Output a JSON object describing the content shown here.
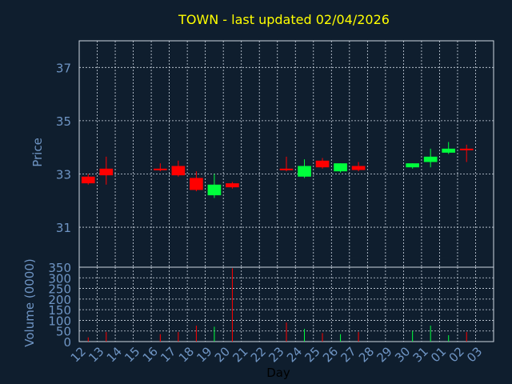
{
  "chart_data": {
    "type": "candlestick",
    "title": "TOWN - last updated 02/04/2026",
    "xlabel": "Day",
    "price_panel": {
      "ylabel": "Price",
      "ylim": [
        29.5,
        38.0
      ],
      "yticks": [
        31,
        33,
        35,
        37
      ]
    },
    "volume_panel": {
      "ylabel": "Volume (0000)",
      "ylim": [
        0,
        350
      ],
      "yticks": [
        0,
        50,
        100,
        150,
        200,
        250,
        300,
        350
      ]
    },
    "x_ticks": [
      "12",
      "13",
      "14",
      "15",
      "16",
      "17",
      "18",
      "19",
      "20",
      "21",
      "22",
      "23",
      "24",
      "25",
      "26",
      "27",
      "28",
      "29",
      "30",
      "31",
      "01",
      "02",
      "03"
    ],
    "candles": [
      {
        "x": "12",
        "open": 32.9,
        "high": 33.0,
        "low": 32.6,
        "close": 32.65,
        "volume": 20
      },
      {
        "x": "13",
        "open": 33.2,
        "high": 33.65,
        "low": 32.6,
        "close": 32.95,
        "volume": 45
      },
      {
        "x": "16",
        "open": 33.2,
        "high": 33.4,
        "low": 33.1,
        "close": 33.15,
        "volume": 35
      },
      {
        "x": "17",
        "open": 33.3,
        "high": 33.5,
        "low": 32.9,
        "close": 32.95,
        "volume": 45
      },
      {
        "x": "18",
        "open": 32.85,
        "high": 33.1,
        "low": 32.35,
        "close": 32.4,
        "volume": 75
      },
      {
        "x": "19",
        "open": 32.2,
        "high": 33.0,
        "low": 32.1,
        "close": 32.6,
        "volume": 70
      },
      {
        "x": "20",
        "open": 32.65,
        "high": 32.7,
        "low": 32.45,
        "close": 32.5,
        "volume": 345
      },
      {
        "x": "23",
        "open": 33.2,
        "high": 33.65,
        "low": 33.1,
        "close": 33.15,
        "volume": 90
      },
      {
        "x": "24",
        "open": 32.9,
        "high": 33.55,
        "low": 32.85,
        "close": 33.3,
        "volume": 60
      },
      {
        "x": "25",
        "open": 33.5,
        "high": 33.6,
        "low": 33.2,
        "close": 33.25,
        "volume": 40
      },
      {
        "x": "26",
        "open": 33.1,
        "high": 33.4,
        "low": 33.05,
        "close": 33.4,
        "volume": 35
      },
      {
        "x": "27",
        "open": 33.3,
        "high": 33.45,
        "low": 33.1,
        "close": 33.15,
        "volume": 45
      },
      {
        "x": "30",
        "open": 33.25,
        "high": 33.4,
        "low": 33.2,
        "close": 33.4,
        "volume": 50
      },
      {
        "x": "31",
        "open": 33.45,
        "high": 33.95,
        "low": 33.25,
        "close": 33.65,
        "volume": 75
      },
      {
        "x": "01",
        "open": 33.8,
        "high": 34.2,
        "low": 33.75,
        "close": 33.95,
        "volume": 30
      },
      {
        "x": "02",
        "open": 33.95,
        "high": 34.1,
        "low": 33.45,
        "close": 33.9,
        "volume": 45
      }
    ],
    "grid": true,
    "colors": {
      "background": "#0f1e2e",
      "title": "#ffff00",
      "axis_text": "#6f95c4",
      "grid": "#cfd8e3",
      "up": "#00ff3c",
      "down": "#ff0000"
    }
  }
}
